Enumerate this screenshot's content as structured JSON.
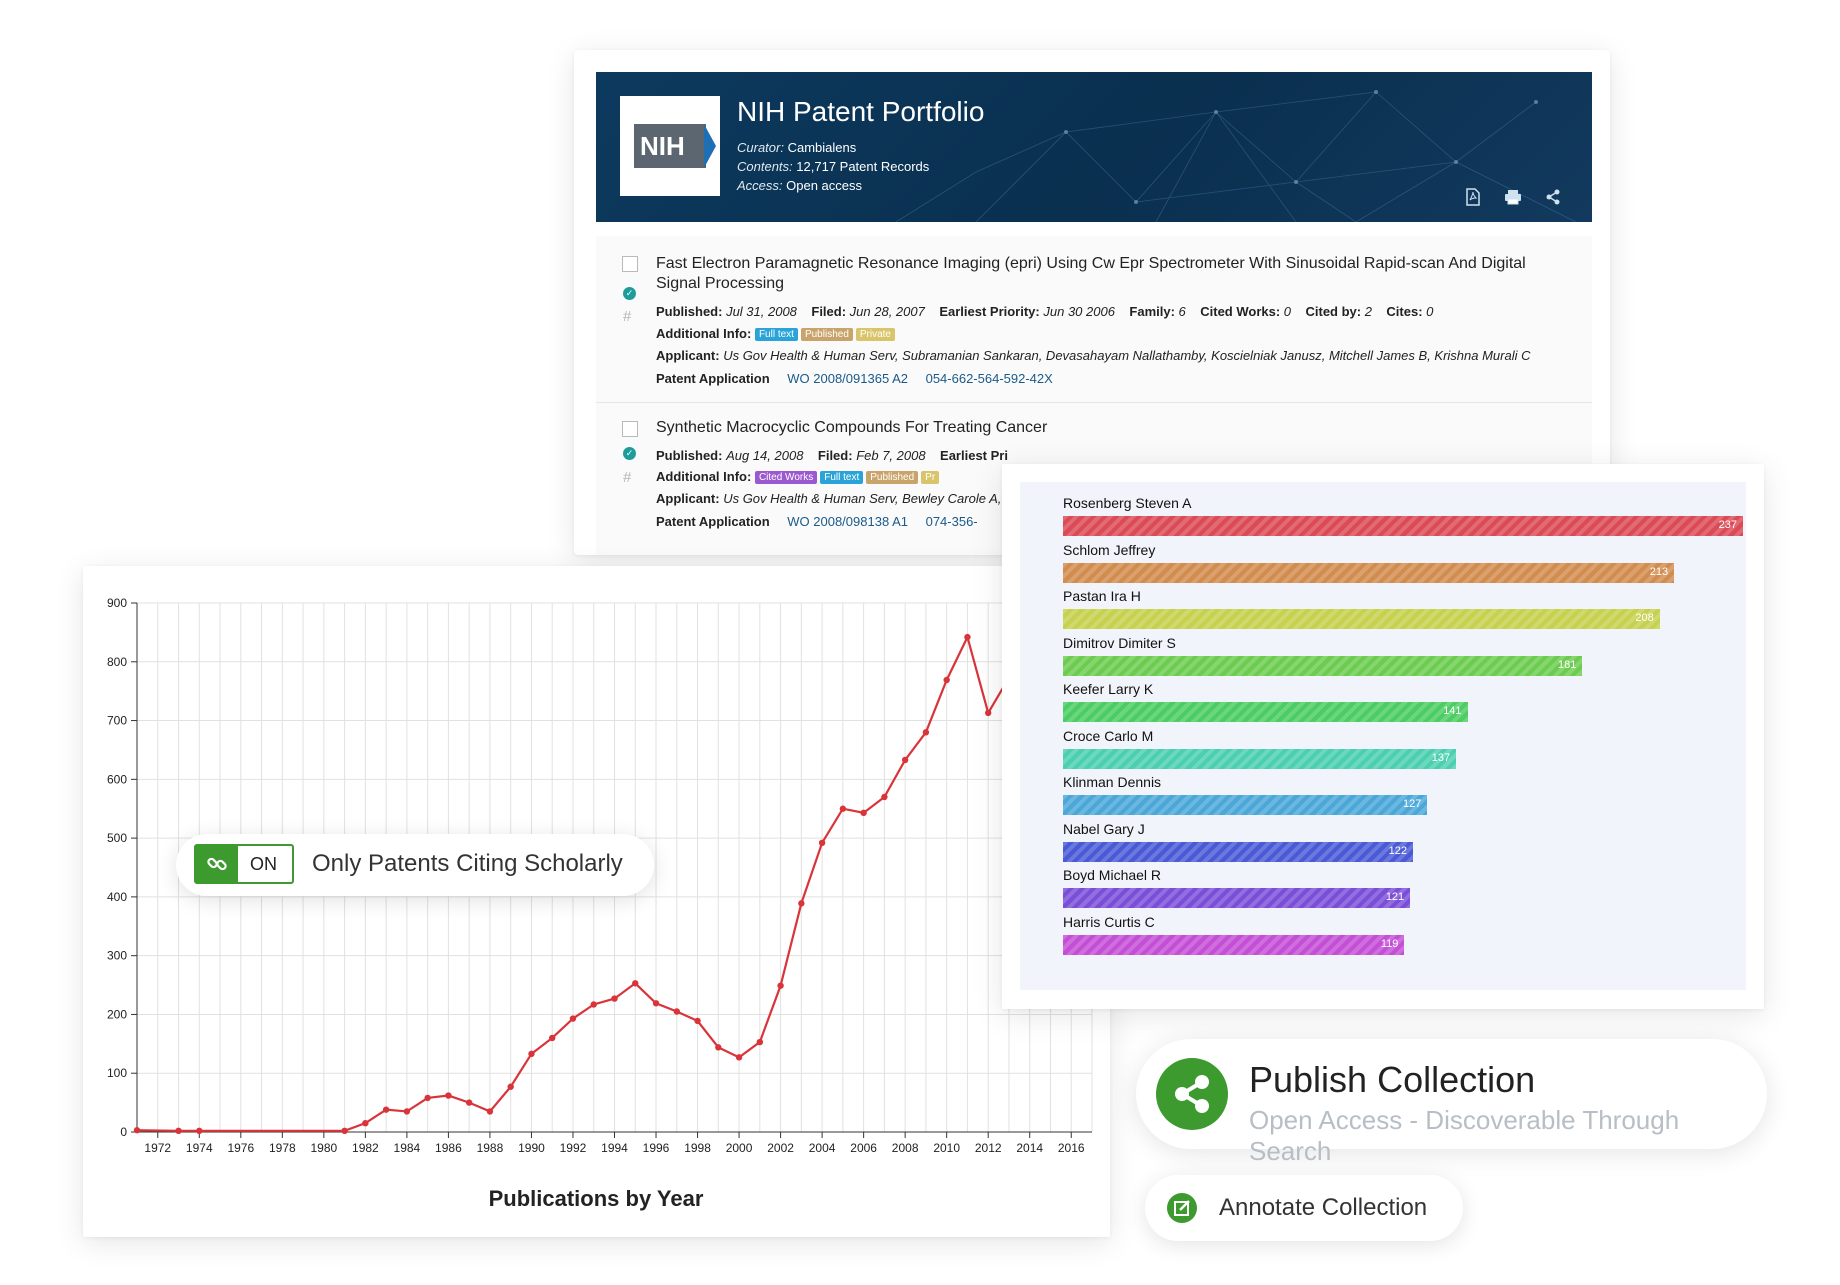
{
  "portfolio": {
    "title": "NIH Patent Portfolio",
    "logo_text": "NIH",
    "curator_label": "Curator:",
    "curator": "Cambialens",
    "contents_label": "Contents:",
    "contents": "12,717 Patent Records",
    "access_label": "Access:",
    "access": "Open access",
    "icons": [
      "pdf-icon",
      "print-icon",
      "share-icon"
    ]
  },
  "records": [
    {
      "title": "Fast Electron Paramagnetic Resonance Imaging (epri) Using Cw Epr Spectrometer With Sinusoidal Rapid-scan And Digital Signal Processing",
      "published_label": "Published:",
      "published": "Jul 31, 2008",
      "filed_label": "Filed:",
      "filed": "Jun 28, 2007",
      "priority_label": "Earliest Priority:",
      "priority": "Jun 30 2006",
      "family_label": "Family:",
      "family": "6",
      "cited_works_label": "Cited Works:",
      "cited_works": "0",
      "cited_by_label": "Cited by:",
      "cited_by": "2",
      "cites_label": "Cites:",
      "cites": "0",
      "additional_label": "Additional Info:",
      "tags": [
        "Full text",
        "Published",
        "Private"
      ],
      "applicant_label": "Applicant:",
      "applicant": "Us Gov Health & Human Serv, Subramanian Sankaran, Devasahayam Nallathamby, Koscielniak Janusz, Mitchell James B, Krishna Murali C",
      "type": "Patent Application",
      "number": "WO 2008/091365 A2",
      "lens_id": "054-662-564-592-42X"
    },
    {
      "title": "Synthetic Macrocyclic Compounds For Treating Cancer",
      "published_label": "Published:",
      "published": "Aug 14, 2008",
      "filed_label": "Filed:",
      "filed": "Feb 7, 2008",
      "priority_label": "Earliest Pri",
      "additional_label": "Additional Info:",
      "tags": [
        "Cited Works",
        "Full text",
        "Published",
        "Pr"
      ],
      "applicant_label": "Applicant:",
      "applicant": "Us Gov Health & Human Serv, Bewley Carole A,",
      "type": "Patent Application",
      "number": "WO 2008/098138 A1",
      "lens_id": "074-356-"
    }
  ],
  "toggle": {
    "state": "ON",
    "label": "Only Patents Citing Scholarly"
  },
  "line_chart_data": {
    "type": "line",
    "title": "Publications by Year",
    "ylim": [
      0,
      900
    ],
    "yticks": [
      0,
      100,
      200,
      300,
      400,
      500,
      600,
      700,
      800,
      900
    ],
    "xticks": [
      1972,
      1974,
      1976,
      1978,
      1980,
      1982,
      1984,
      1986,
      1988,
      1990,
      1992,
      1994,
      1996,
      1998,
      2000,
      2002,
      2004,
      2006,
      2008,
      2010,
      2012,
      2014,
      2016
    ],
    "xlim": [
      1971,
      2017
    ],
    "grid": true,
    "color": "#d9343a",
    "x": [
      1971,
      1973,
      1974,
      1981,
      1982,
      1983,
      1984,
      1985,
      1986,
      1987,
      1988,
      1989,
      1990,
      1991,
      1992,
      1993,
      1994,
      1995,
      1996,
      1997,
      1998,
      1999,
      2000,
      2001,
      2002,
      2003,
      2004,
      2005,
      2006,
      2007,
      2008,
      2009,
      2010,
      2011,
      2012,
      2013
    ],
    "y": [
      3,
      2,
      2,
      2,
      15,
      38,
      35,
      58,
      62,
      50,
      35,
      77,
      133,
      160,
      193,
      217,
      227,
      253,
      219,
      205,
      189,
      144,
      127,
      153,
      249,
      389,
      492,
      550,
      543,
      570,
      633,
      680,
      769,
      842,
      713,
      773
    ]
  },
  "bar_chart_data": {
    "type": "bar",
    "orientation": "horizontal",
    "categories": [
      "Rosenberg Steven A",
      "Schlom Jeffrey",
      "Pastan Ira H",
      "Dimitrov Dimiter S",
      "Keefer Larry K",
      "Croce Carlo M",
      "Klinman Dennis",
      "Nabel Gary J",
      "Boyd Michael R",
      "Harris Curtis C"
    ],
    "values": [
      237,
      213,
      208,
      181,
      141,
      137,
      127,
      122,
      121,
      119
    ],
    "colors": [
      "#db4a55",
      "#d28c4e",
      "#c6d14d",
      "#6ccc4f",
      "#4ccd63",
      "#4ccfb0",
      "#4aa7d8",
      "#4a5ad6",
      "#7a4ed8",
      "#c44ed6"
    ]
  },
  "publish": {
    "title": "Publish Collection",
    "subtitle": "Open Access - Discoverable Through Search"
  },
  "annotate": {
    "label": "Annotate Collection"
  }
}
